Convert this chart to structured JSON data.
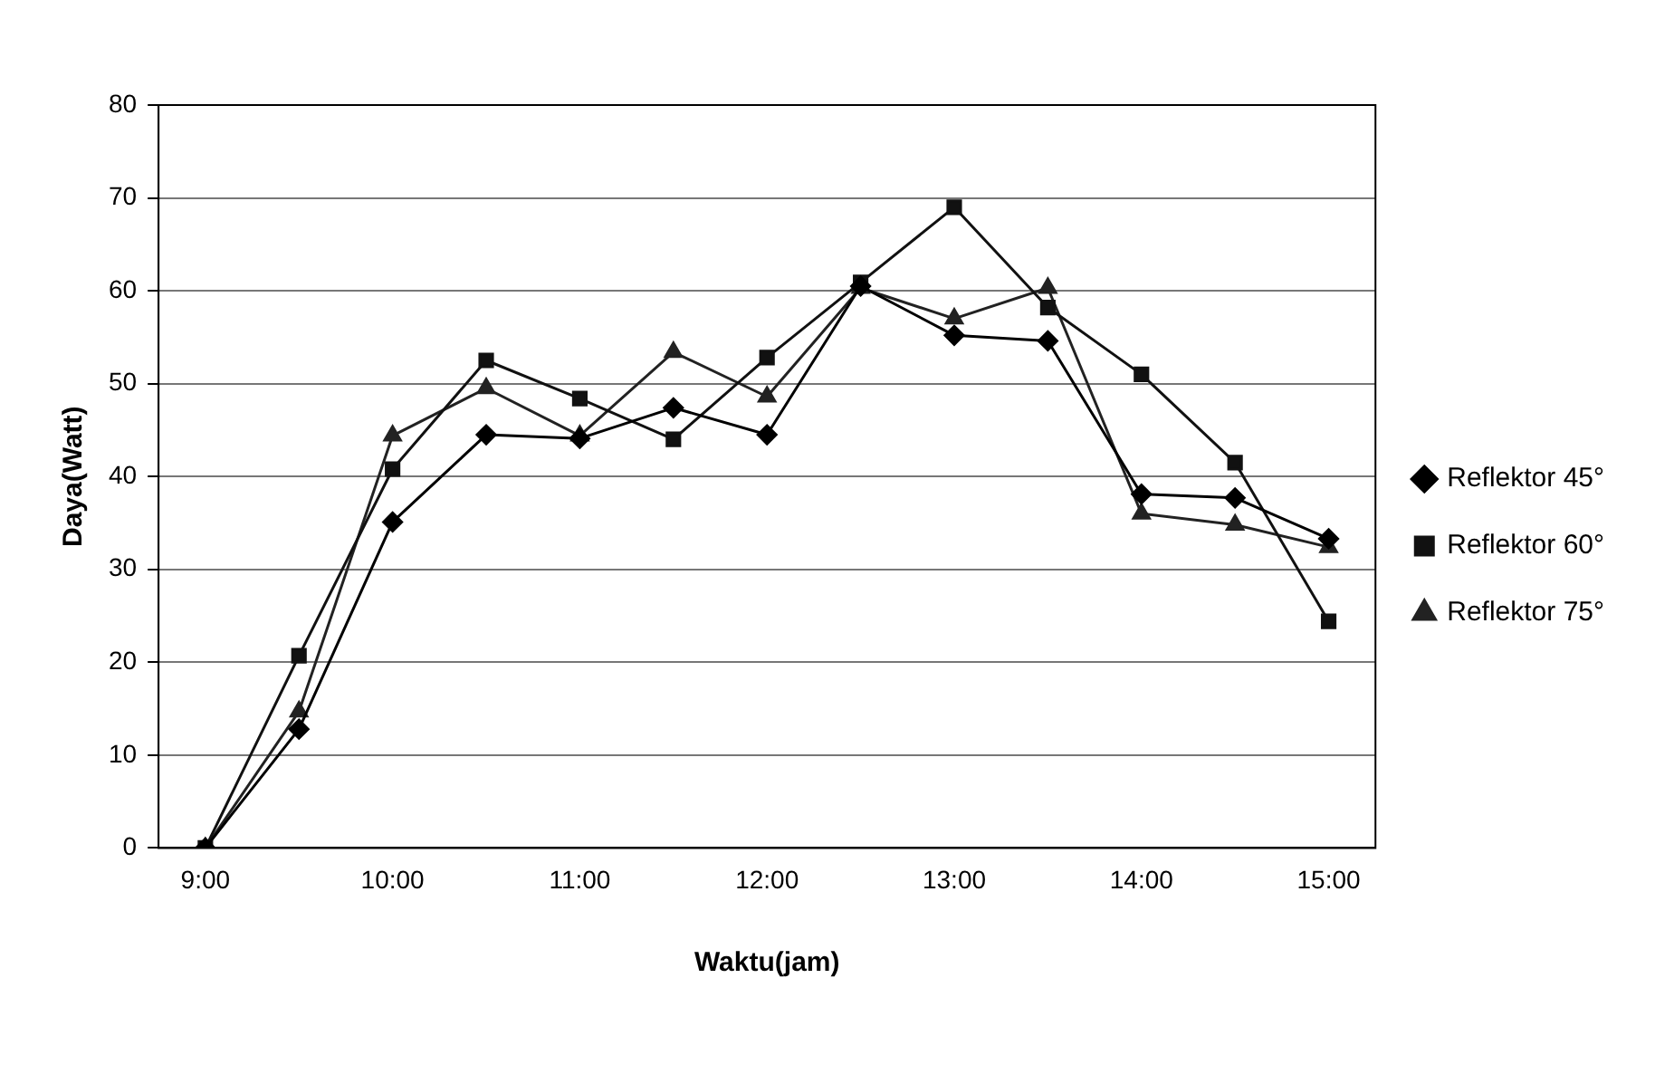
{
  "chart_data": {
    "type": "line",
    "xlabel": "Waktu(jam)",
    "ylabel": "Daya(Watt)",
    "categories": [
      "9:00",
      null,
      "10:00",
      null,
      "11:00",
      null,
      "12:00",
      null,
      "13:00",
      null,
      "14:00",
      null,
      "15:00"
    ],
    "series": [
      {
        "name": "Reflektor 45°",
        "color": "#000000",
        "marker": "diamond",
        "values": [
          0,
          12.8,
          35.1,
          44.5,
          44.1,
          47.4,
          44.5,
          60.5,
          55.2,
          54.6,
          38.1,
          37.7,
          33.3
        ]
      },
      {
        "name": "Reflektor 60°",
        "color": "#111111",
        "marker": "square",
        "values": [
          0,
          20.7,
          40.8,
          52.5,
          48.4,
          44.0,
          52.8,
          60.9,
          69.0,
          58.2,
          51.0,
          41.5,
          24.4
        ]
      },
      {
        "name": "Reflektor 75°",
        "color": "#222222",
        "marker": "triangle",
        "values": [
          0,
          14.7,
          44.4,
          49.5,
          44.4,
          53.4,
          48.6,
          60.3,
          57.0,
          60.3,
          36.0,
          34.8,
          32.4
        ]
      }
    ],
    "ylim": [
      0,
      80
    ],
    "yticks": [
      0,
      10,
      20,
      30,
      40,
      50,
      60,
      70,
      80
    ],
    "grid": "y",
    "legend": "right",
    "line_style": "solid"
  }
}
